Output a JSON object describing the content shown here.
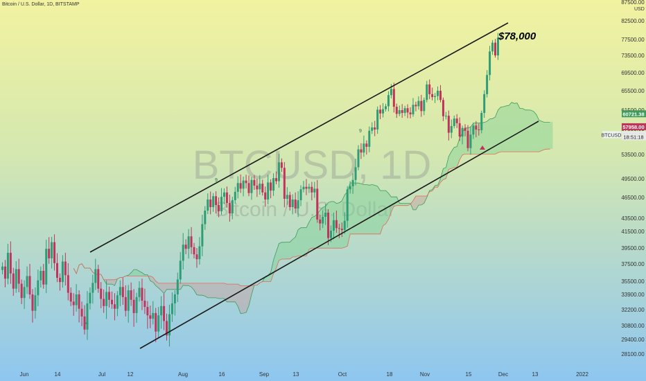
{
  "header": {
    "title": "Bitcoin / U.S. Dollar, 1D, BITSTAMP"
  },
  "currency": "USD",
  "watermark": {
    "line1": "BTCUSD, 1D",
    "line2": "Bitcoin / U.S. Dollar"
  },
  "annotation": {
    "text": "$78,000"
  },
  "colors": {
    "up": "#2e9c74",
    "down": "#c2335b",
    "channel": "#1a1a1a",
    "cloud_bull": "#7fd094",
    "cloud_bear": "#c8a0a0",
    "leading_a": "#3e9b5a",
    "leading_b": "#e06a5a",
    "bg_top": "#f2f2a0",
    "bg_bottom": "#8ec6f0"
  },
  "chart_data": {
    "type": "candlestick",
    "symbol": "BTCUSD",
    "timeframe": "1D",
    "exchange": "BITSTAMP",
    "ylim": [
      27500,
      87500
    ],
    "x_tick_labels": [
      "Jun",
      "14",
      "Jul",
      "12",
      "Aug",
      "16",
      "Sep",
      "13",
      "Oct",
      "18",
      "Nov",
      "15",
      "Dec",
      "13",
      "2022"
    ],
    "y_tick_labels": [
      "87500.00",
      "82500.00",
      "77500.00",
      "73500.00",
      "69500.00",
      "65500.00",
      "61500.00",
      "57500.00",
      "53500.00",
      "49500.00",
      "46500.00",
      "43500.00",
      "41500.00",
      "39500.00",
      "37500.00",
      "35500.00",
      "33900.00",
      "32200.00",
      "30800.00",
      "29400.00",
      "28100.00"
    ],
    "y_ticks": [
      87500,
      82500,
      77500,
      73500,
      69500,
      65500,
      61500,
      57500,
      53500,
      49500,
      46500,
      43500,
      41500,
      39500,
      37500,
      35500,
      33900,
      32200,
      30800,
      29400,
      28100
    ],
    "price_labels": [
      {
        "name": "60721.38",
        "value": 60721.38,
        "color": "#3e9b5a"
      },
      {
        "name": "57958.00",
        "value": 57958.0,
        "color": "#c2335b"
      },
      {
        "name": "56589.59",
        "value": 56589.59,
        "color": "#e8e8e8"
      },
      {
        "name": "18:51:18",
        "value": 56250,
        "color": "#e8e8e8"
      }
    ],
    "symbol_label": "BTCUSD",
    "candle_closes": [
      37200,
      35800,
      38900,
      36400,
      34600,
      36900,
      35200,
      33500,
      34800,
      36100,
      33900,
      32100,
      33800,
      35600,
      36700,
      35100,
      39400,
      38200,
      40200,
      37600,
      35900,
      35400,
      37800,
      36200,
      34100,
      33100,
      32700,
      33900,
      32300,
      31600,
      30400,
      32900,
      34100,
      35300,
      36900,
      34600,
      33400,
      32600,
      34200,
      33300,
      32800,
      32300,
      33800,
      34800,
      33600,
      32100,
      34400,
      33300,
      31900,
      33600,
      34700,
      33200,
      32500,
      31700,
      31400,
      31900,
      30200,
      31700,
      32600,
      31200,
      29800,
      31800,
      32900,
      33900,
      35700,
      37900,
      39900,
      39400,
      40900,
      39600,
      38700,
      38100,
      39700,
      42600,
      44600,
      46200,
      45100,
      46700,
      45400,
      44500,
      46600,
      47300,
      45700,
      44200,
      46100,
      47400,
      48800,
      47900,
      49200,
      48800,
      47200,
      49300,
      48400,
      47800,
      48700,
      47300,
      46200,
      48900,
      47600,
      49600,
      49100,
      52200,
      51300,
      46300,
      46900,
      45100,
      46200,
      44900,
      46100,
      47800,
      48200,
      47900,
      48200,
      47300,
      47900,
      43300,
      42700,
      43700,
      44300,
      40700,
      41600,
      43200,
      42000,
      41900,
      41700,
      43100,
      47800,
      48300,
      49300,
      51400,
      54300,
      53800,
      55200,
      54700,
      57200,
      57800,
      57400,
      61600,
      60800,
      61700,
      62300,
      64600,
      65900,
      62200,
      60700,
      61500,
      60900,
      61900,
      61000,
      60600,
      62600,
      62300,
      63400,
      61300,
      63600,
      66900,
      64800,
      64200,
      64400,
      65500,
      63600,
      60200,
      60300,
      56900,
      58100,
      59700,
      58700,
      56300,
      57700,
      57200,
      54500,
      56600,
      58200,
      57400,
      57300,
      60900,
      64800,
      69000,
      74500,
      76700,
      73500,
      78000
    ]
  }
}
